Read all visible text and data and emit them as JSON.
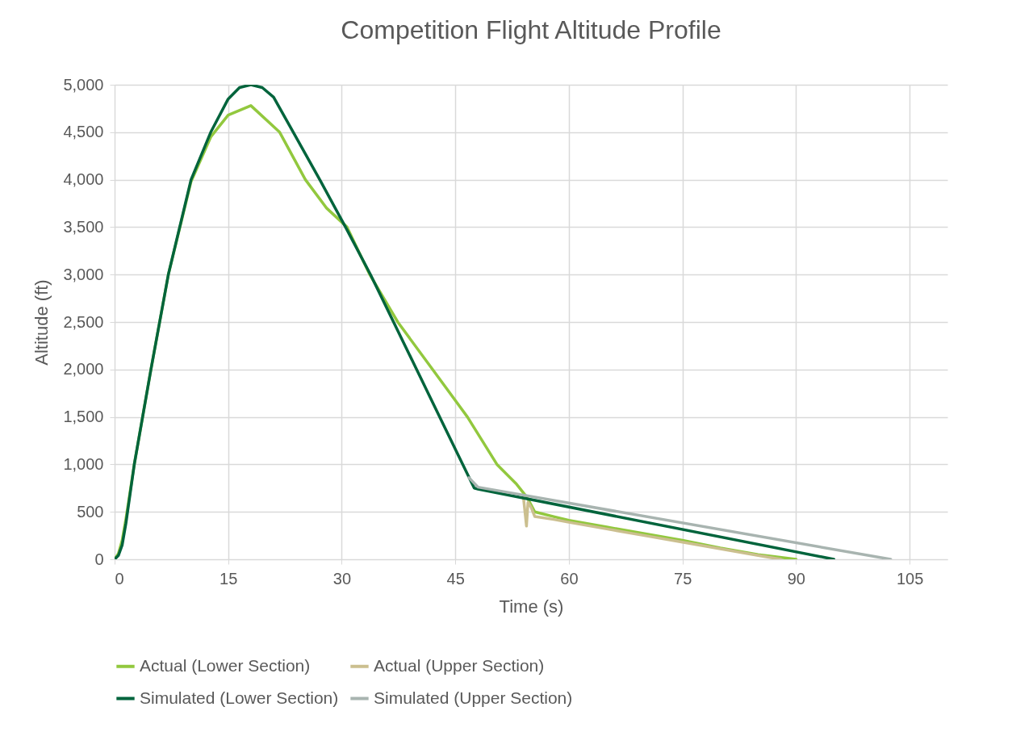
{
  "chart_data": {
    "type": "line",
    "title": "Competition Flight Altitude Profile",
    "xlabel": "Time (s)",
    "ylabel": "Altitude (ft)",
    "xlim": [
      0,
      110
    ],
    "xticks": [
      0,
      15,
      30,
      45,
      60,
      75,
      90,
      105
    ],
    "ylim": [
      0,
      5000
    ],
    "yticks": [
      0,
      {
        "value": 500,
        "label": "500"
      },
      {
        "value": 1000,
        "label": "1,000"
      },
      {
        "value": 1500,
        "label": "1,500"
      },
      {
        "value": 2000,
        "label": "2,000"
      },
      {
        "value": 2500,
        "label": "2,500"
      },
      {
        "value": 3000,
        "label": "3,000"
      },
      {
        "value": 3500,
        "label": "3,500"
      },
      {
        "value": 4000,
        "label": "4,000"
      },
      {
        "value": 4500,
        "label": "4,500"
      },
      {
        "value": 5000,
        "label": "5,000"
      }
    ],
    "grid": true,
    "legend": "bottom",
    "line_style": "solid",
    "marker": "none",
    "series": [
      {
        "name": "Actual (Lower Section)",
        "color": "#92c83e",
        "x": [
          0,
          0.5,
          1,
          1.5,
          2.6,
          4.8,
          7.1,
          10.1,
          12.7,
          15,
          18,
          21.8,
          25.2,
          28,
          30.7,
          33.7,
          37.4,
          42,
          46.6,
          50.5,
          53,
          54.5,
          55.5,
          58,
          60,
          65,
          70,
          75,
          80,
          85,
          87,
          90
        ],
        "values": [
          0,
          60,
          200,
          430,
          1000,
          2000,
          3000,
          3980,
          4450,
          4680,
          4780,
          4500,
          4000,
          3700,
          3500,
          3000,
          2500,
          2000,
          1500,
          1000,
          800,
          650,
          500,
          450,
          410,
          340,
          270,
          200,
          120,
          50,
          30,
          0
        ]
      },
      {
        "name": "Actual (Upper Section)",
        "color": "#cbbf8f",
        "x": [
          54,
          54.4,
          54.6,
          55,
          55.5,
          58,
          60,
          65,
          70,
          75,
          80,
          85,
          88
        ],
        "values": [
          650,
          350,
          600,
          550,
          450,
          420,
          390,
          320,
          250,
          180,
          110,
          40,
          0
        ]
      },
      {
        "name": "Simulated (Lower Section)",
        "color": "#00643c",
        "x": [
          0,
          0.5,
          1,
          1.5,
          2.6,
          4.8,
          7.1,
          10.1,
          12.7,
          15,
          16.5,
          18,
          19.5,
          21,
          23.6,
          27.1,
          30.5,
          33.8,
          47.5,
          48,
          95
        ],
        "values": [
          0,
          40,
          150,
          380,
          1000,
          2000,
          3000,
          4000,
          4500,
          4850,
          4970,
          5000,
          4970,
          4870,
          4500,
          4000,
          3500,
          3000,
          750,
          740,
          0
        ]
      },
      {
        "name": "Simulated (Upper Section)",
        "color": "#a8b4b0",
        "x": [
          46.8,
          48,
          102.5
        ],
        "values": [
          860,
          760,
          0
        ]
      }
    ]
  }
}
